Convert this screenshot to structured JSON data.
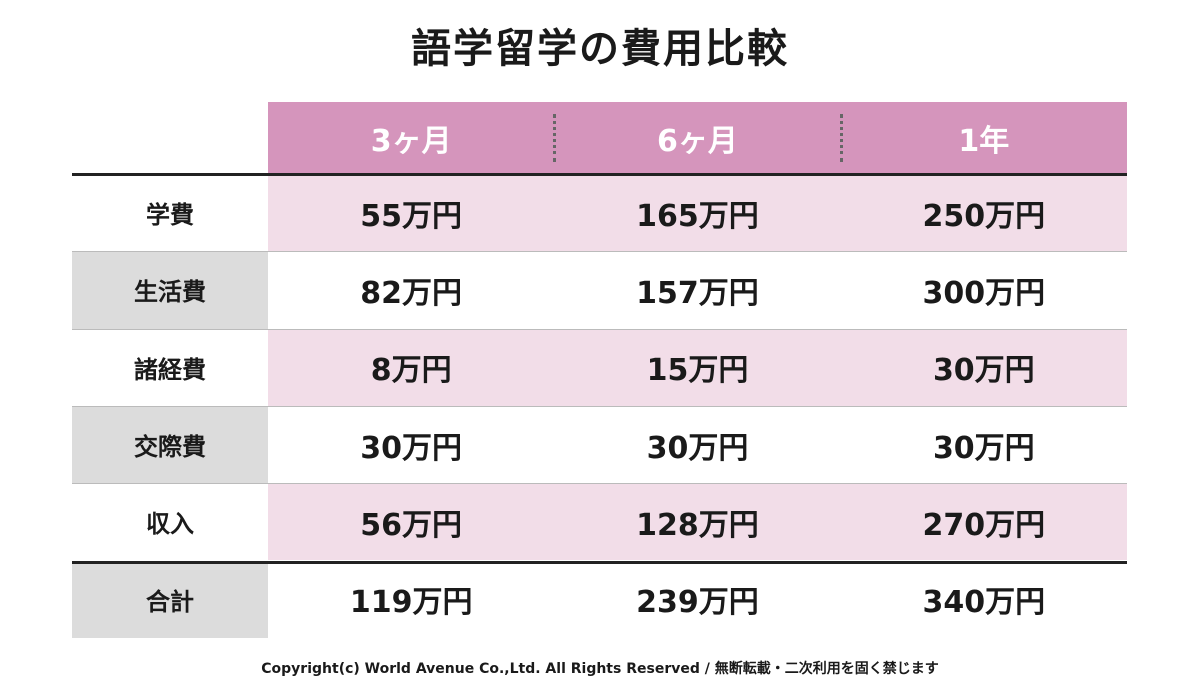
{
  "title": "語学留学の費用比較",
  "table": {
    "columns": [
      "3ヶ月",
      "6ヶ月",
      "1年"
    ],
    "rows": [
      {
        "label": "学費",
        "cells": [
          "55万円",
          "165万円",
          "250万円"
        ]
      },
      {
        "label": "生活費",
        "cells": [
          "82万円",
          "157万円",
          "300万円"
        ]
      },
      {
        "label": "諸経費",
        "cells": [
          "8万円",
          "15万円",
          "30万円"
        ]
      },
      {
        "label": "交際費",
        "cells": [
          "30万円",
          "30万円",
          "30万円"
        ]
      },
      {
        "label": "収入",
        "cells": [
          "56万円",
          "128万円",
          "270万円"
        ]
      },
      {
        "label": "合計",
        "cells": [
          "119万円",
          "239万円",
          "340万円"
        ]
      }
    ]
  },
  "footer": "Copyright(c) World Avenue Co.,Ltd. All Rights Reserved / 無断転載・二次利用を固く禁じます"
}
